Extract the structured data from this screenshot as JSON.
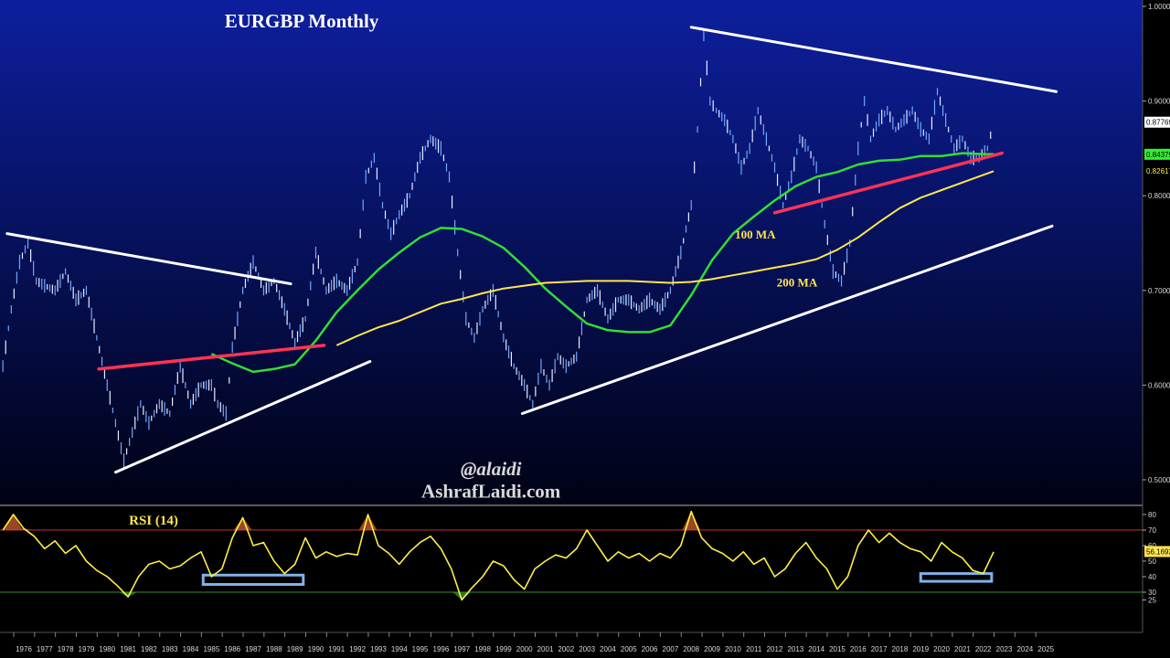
{
  "chart_data": [
    {
      "type": "line",
      "title": "EURGBP Monthly",
      "ylim": [
        0.49,
        1.0
      ],
      "yticks": [
        "1.00000",
        "0.90000",
        "0.80000",
        "0.70000",
        "0.60000",
        "0.50000"
      ],
      "ytick_values": [
        1.0,
        0.9,
        0.8,
        0.7,
        0.6,
        0.5
      ],
      "price_tags": [
        {
          "label": "0.87769",
          "value": 0.8777,
          "bg": "#ffffff",
          "fg": "#000000"
        },
        {
          "label": "0.84379",
          "value": 0.8438,
          "bg": "#33ee33",
          "fg": "#000000"
        },
        {
          "label": "0.82617",
          "value": 0.8262,
          "bg": "#000000",
          "fg": "#ffe64d"
        }
      ],
      "series": [
        {
          "name": "100 MA",
          "color": "#33dd33",
          "x": [
            1985.0,
            1986.0,
            1987.0,
            1988.0,
            1989.0,
            1990.0,
            1991.0,
            1992.0,
            1993.0,
            1994.0,
            1995.0,
            1996.0,
            1997.0,
            1998.0,
            1999.0,
            2000.0,
            2001.0,
            2002.0,
            2003.0,
            2004.0,
            2005.0,
            2006.0,
            2007.0,
            2008.0,
            2009.0,
            2010.0,
            2011.0,
            2012.0,
            2013.0,
            2014.0,
            2015.0,
            2016.0,
            2017.0,
            2018.0,
            2019.0,
            2020.0,
            2021.0,
            2022.0,
            2022.5
          ],
          "y": [
            0.633,
            0.623,
            0.614,
            0.617,
            0.622,
            0.647,
            0.677,
            0.7,
            0.722,
            0.74,
            0.756,
            0.766,
            0.765,
            0.757,
            0.745,
            0.725,
            0.702,
            0.683,
            0.665,
            0.658,
            0.656,
            0.656,
            0.663,
            0.695,
            0.732,
            0.76,
            0.778,
            0.795,
            0.81,
            0.82,
            0.825,
            0.833,
            0.837,
            0.838,
            0.842,
            0.842,
            0.845,
            0.844,
            0.844
          ]
        },
        {
          "name": "200 MA",
          "color": "#ffe64d",
          "x": [
            1991.0,
            1992.0,
            1993.0,
            1994.0,
            1995.0,
            1996.0,
            1997.0,
            1998.0,
            1999.0,
            2000.0,
            2001.0,
            2002.0,
            2003.0,
            2004.0,
            2005.0,
            2006.0,
            2007.0,
            2008.0,
            2009.0,
            2010.0,
            2011.0,
            2012.0,
            2013.0,
            2014.0,
            2015.0,
            2016.0,
            2017.0,
            2018.0,
            2019.0,
            2020.0,
            2021.0,
            2022.0,
            2022.5
          ],
          "y": [
            0.642,
            0.652,
            0.661,
            0.668,
            0.677,
            0.686,
            0.691,
            0.697,
            0.702,
            0.705,
            0.708,
            0.709,
            0.71,
            0.71,
            0.71,
            0.709,
            0.708,
            0.709,
            0.712,
            0.716,
            0.72,
            0.724,
            0.728,
            0.733,
            0.743,
            0.756,
            0.772,
            0.787,
            0.798,
            0.806,
            0.814,
            0.822,
            0.826
          ]
        },
        {
          "name": "",
          "color": "#6fa8ff",
          "x": [
            1975.0,
            1975.4,
            1975.8,
            1976.2,
            1976.6,
            1977.0,
            1977.5,
            1978.0,
            1978.5,
            1979.0,
            1979.5,
            1980.0,
            1980.4,
            1980.8,
            1981.2,
            1981.6,
            1982.0,
            1982.5,
            1983.0,
            1983.5,
            1984.0,
            1984.5,
            1985.0,
            1985.3,
            1985.7,
            1986.0,
            1986.5,
            1987.0,
            1987.5,
            1988.0,
            1988.5,
            1989.0,
            1989.5,
            1990.0,
            1990.5,
            1991.0,
            1991.5,
            1992.0,
            1992.4,
            1992.8,
            1993.2,
            1993.6,
            1994.0,
            1994.5,
            1995.0,
            1995.5,
            1996.0,
            1996.4,
            1996.8,
            1997.2,
            1997.6,
            1998.0,
            1998.5,
            1999.0,
            1999.5,
            2000.0,
            2000.4,
            2000.8,
            2001.2,
            2001.6,
            2002.0,
            2002.5,
            2003.0,
            2003.5,
            2004.0,
            2004.5,
            2005.0,
            2005.5,
            2006.0,
            2006.5,
            2007.0,
            2007.5,
            2008.0,
            2008.3,
            2008.6,
            2008.9,
            2009.2,
            2009.6,
            2010.0,
            2010.4,
            2010.8,
            2011.2,
            2011.6,
            2012.0,
            2012.4,
            2012.8,
            2013.2,
            2013.6,
            2014.0,
            2014.4,
            2014.8,
            2015.2,
            2015.6,
            2016.0,
            2016.3,
            2016.6,
            2017.0,
            2017.4,
            2017.8,
            2018.2,
            2018.6,
            2019.0,
            2019.4,
            2019.8,
            2020.2,
            2020.6,
            2021.0,
            2021.4,
            2021.8,
            2022.2,
            2022.5
          ],
          "y": [
            0.62,
            0.68,
            0.73,
            0.75,
            0.71,
            0.705,
            0.7,
            0.72,
            0.69,
            0.7,
            0.65,
            0.6,
            0.56,
            0.52,
            0.55,
            0.58,
            0.56,
            0.58,
            0.57,
            0.62,
            0.58,
            0.6,
            0.6,
            0.58,
            0.57,
            0.64,
            0.7,
            0.73,
            0.7,
            0.71,
            0.68,
            0.645,
            0.67,
            0.74,
            0.7,
            0.71,
            0.7,
            0.73,
            0.82,
            0.84,
            0.79,
            0.76,
            0.78,
            0.8,
            0.84,
            0.86,
            0.85,
            0.82,
            0.74,
            0.67,
            0.65,
            0.68,
            0.7,
            0.65,
            0.62,
            0.6,
            0.58,
            0.62,
            0.6,
            0.63,
            0.62,
            0.63,
            0.69,
            0.7,
            0.67,
            0.69,
            0.69,
            0.68,
            0.69,
            0.68,
            0.7,
            0.74,
            0.79,
            0.87,
            0.97,
            0.9,
            0.89,
            0.88,
            0.86,
            0.83,
            0.85,
            0.89,
            0.86,
            0.83,
            0.79,
            0.82,
            0.86,
            0.85,
            0.83,
            0.77,
            0.72,
            0.71,
            0.75,
            0.85,
            0.9,
            0.86,
            0.88,
            0.89,
            0.87,
            0.88,
            0.89,
            0.87,
            0.86,
            0.91,
            0.88,
            0.85,
            0.86,
            0.84,
            0.84,
            0.85,
            0.878
          ]
        }
      ],
      "trendlines": [
        {
          "color": "#ffffff",
          "x": [
            1975.2,
            1988.8
          ],
          "y": [
            0.76,
            0.707
          ]
        },
        {
          "color": "#ffffff",
          "x": [
            1980.4,
            1992.6
          ],
          "y": [
            0.508,
            0.625
          ]
        },
        {
          "color": "#ff3355",
          "x": [
            1979.6,
            1990.4
          ],
          "y": [
            0.617,
            0.642
          ]
        },
        {
          "color": "#ffffff",
          "x": [
            2008.0,
            2025.5
          ],
          "y": [
            0.978,
            0.91
          ]
        },
        {
          "color": "#ffffff",
          "x": [
            1999.9,
            2025.3
          ],
          "y": [
            0.57,
            0.768
          ]
        },
        {
          "color": "#ff3355",
          "x": [
            2012.0,
            2022.9
          ],
          "y": [
            0.782,
            0.845
          ]
        }
      ],
      "annotations": [
        {
          "text": "100 MA",
          "color": "#ffe64d",
          "x": 2010.1,
          "y": 0.755
        },
        {
          "text": "200 MA",
          "color": "#ffe64d",
          "x": 2012.1,
          "y": 0.704
        },
        {
          "text": "@alaidi",
          "color": "#d9d9d9",
          "x": 1998.4,
          "y": 0.505
        },
        {
          "text": "AshrafLaidi.com",
          "color": "#d9d9d9",
          "x": 1998.4,
          "y": 0.481
        }
      ]
    },
    {
      "type": "line",
      "title": "RSI (14)",
      "ylim": [
        20,
        85
      ],
      "yticks": [
        "80",
        "70",
        "60",
        "50",
        "40",
        "30",
        "25"
      ],
      "ytick_values": [
        80,
        70,
        60,
        50,
        40,
        30,
        25
      ],
      "price_tags": [
        {
          "label": "56.1692",
          "value": 56.17,
          "bg": "#ffe64d",
          "fg": "#000000"
        }
      ],
      "levels": [
        {
          "value": 70,
          "color": "#c0392b"
        },
        {
          "value": 30,
          "color": "#3c8a3c"
        }
      ],
      "highlight_boxes": [
        {
          "x": [
            1984.6,
            1989.4
          ],
          "y": [
            35,
            41
          ]
        },
        {
          "x": [
            2019.0,
            2022.4
          ],
          "y": [
            37,
            42
          ]
        }
      ],
      "series": [
        {
          "name": "",
          "color": "#ffee44",
          "x": [
            1975.0,
            1975.5,
            1976.0,
            1976.5,
            1977.0,
            1977.5,
            1978.0,
            1978.5,
            1979.0,
            1979.5,
            1980.0,
            1980.5,
            1981.0,
            1981.5,
            1982.0,
            1982.5,
            1983.0,
            1983.5,
            1984.0,
            1984.5,
            1985.0,
            1985.5,
            1986.0,
            1986.5,
            1987.0,
            1987.5,
            1988.0,
            1988.5,
            1989.0,
            1989.5,
            1990.0,
            1990.5,
            1991.0,
            1991.5,
            1992.0,
            1992.5,
            1993.0,
            1993.5,
            1994.0,
            1994.5,
            1995.0,
            1995.5,
            1996.0,
            1996.5,
            1997.0,
            1997.5,
            1998.0,
            1998.5,
            1999.0,
            1999.5,
            2000.0,
            2000.5,
            2001.0,
            2001.5,
            2002.0,
            2002.5,
            2003.0,
            2003.5,
            2004.0,
            2004.5,
            2005.0,
            2005.5,
            2006.0,
            2006.5,
            2007.0,
            2007.5,
            2008.0,
            2008.5,
            2009.0,
            2009.5,
            2010.0,
            2010.5,
            2011.0,
            2011.5,
            2012.0,
            2012.5,
            2013.0,
            2013.5,
            2014.0,
            2014.5,
            2015.0,
            2015.5,
            2016.0,
            2016.5,
            2017.0,
            2017.5,
            2018.0,
            2018.5,
            2019.0,
            2019.5,
            2020.0,
            2020.5,
            2021.0,
            2021.5,
            2022.0,
            2022.5
          ],
          "y": [
            70,
            80,
            71,
            66,
            58,
            63,
            55,
            60,
            50,
            44,
            40,
            34,
            27,
            40,
            48,
            50,
            45,
            47,
            52,
            56,
            40,
            45,
            65,
            78,
            60,
            62,
            50,
            42,
            48,
            65,
            52,
            56,
            53,
            55,
            54,
            80,
            60,
            55,
            48,
            56,
            62,
            66,
            58,
            45,
            25,
            33,
            40,
            50,
            47,
            38,
            32,
            45,
            50,
            54,
            52,
            58,
            70,
            60,
            50,
            56,
            52,
            55,
            50,
            55,
            52,
            60,
            82,
            65,
            58,
            55,
            50,
            56,
            48,
            52,
            40,
            45,
            55,
            62,
            52,
            45,
            32,
            40,
            60,
            70,
            62,
            68,
            62,
            58,
            56,
            50,
            62,
            56,
            52,
            44,
            42,
            56
          ]
        }
      ]
    }
  ],
  "x_axis_labels": [
    "1976",
    "1977",
    "1978",
    "1979",
    "1980",
    "1981",
    "1982",
    "1983",
    "1984",
    "1985",
    "1986",
    "1987",
    "1988",
    "1989",
    "1990",
    "1991",
    "1992",
    "1993",
    "1994",
    "1995",
    "1996",
    "1997",
    "1998",
    "1999",
    "2000",
    "2001",
    "2002",
    "2003",
    "2004",
    "2005",
    "2006",
    "2007",
    "2008",
    "2009",
    "2010",
    "2011",
    "2012",
    "2013",
    "2014",
    "2015",
    "2016",
    "2017",
    "2018",
    "2019",
    "2020",
    "2021",
    "2022",
    "2023",
    "2024",
    "2025"
  ],
  "x_axis_values": [
    1976,
    1977,
    1978,
    1979,
    1980,
    1981,
    1982,
    1983,
    1984,
    1985,
    1986,
    1987,
    1988,
    1989,
    1990,
    1991,
    1992,
    1993,
    1994,
    1995,
    1996,
    1997,
    1998,
    1999,
    2000,
    2001,
    2002,
    2003,
    2004,
    2005,
    2006,
    2007,
    2008,
    2009,
    2010,
    2011,
    2012,
    2013,
    2014,
    2015,
    2016,
    2017,
    2018,
    2019,
    2020,
    2021,
    2022,
    2023,
    2024,
    2025
  ],
  "colors": {
    "background_top": "#0d1f9e",
    "background_bottom": "#000214",
    "rsi_background": "#000000",
    "axis_text": "#d8d8d8",
    "title_text": "#ffffff",
    "rsi_title": "#ffe64d"
  }
}
